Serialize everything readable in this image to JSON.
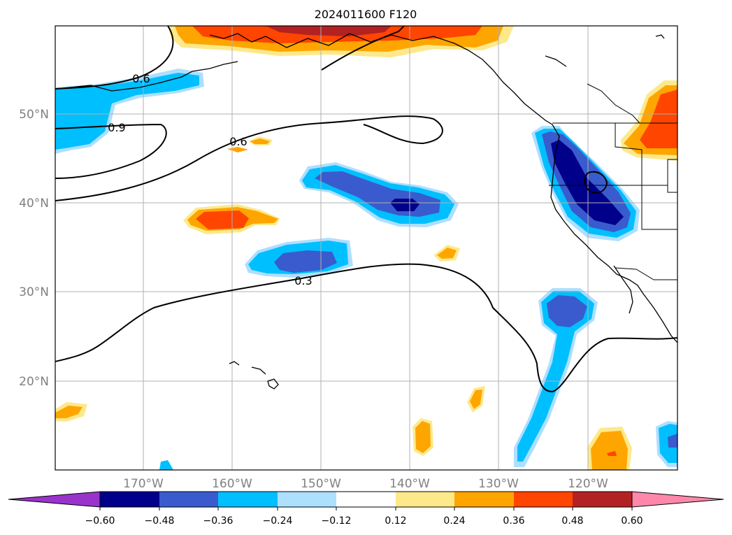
{
  "title": "2024011600 F120",
  "map": {
    "grid": true,
    "lat_labels": [
      "50°N",
      "40°N",
      "30°N",
      "20°N"
    ],
    "lon_labels": [
      "170°W",
      "160°W",
      "150°W",
      "140°W",
      "130°W",
      "120°W"
    ],
    "contour_labels": [
      "0.6",
      "0.9",
      "0.6",
      "0.3"
    ]
  },
  "colorbar": {
    "ticks": [
      "−0.60",
      "−0.48",
      "−0.36",
      "−0.24",
      "−0.12",
      "0.12",
      "0.24",
      "0.36",
      "0.48",
      "0.60"
    ],
    "colors": [
      "#9933cc",
      "#00008b",
      "#3a5bcd",
      "#00bfff",
      "#addfff",
      "#ffffff",
      "#fde98a",
      "#ffa500",
      "#ff4500",
      "#b22222",
      "#ff88aa"
    ]
  },
  "colors": {
    "neg_light": "#addfff",
    "neg_mid": "#00bfff",
    "neg_strong": "#3a5bcd",
    "neg_max": "#00008b",
    "pos_light": "#fde98a",
    "pos_mid": "#ffa500",
    "pos_strong": "#ff4500",
    "pos_max": "#b22222"
  }
}
